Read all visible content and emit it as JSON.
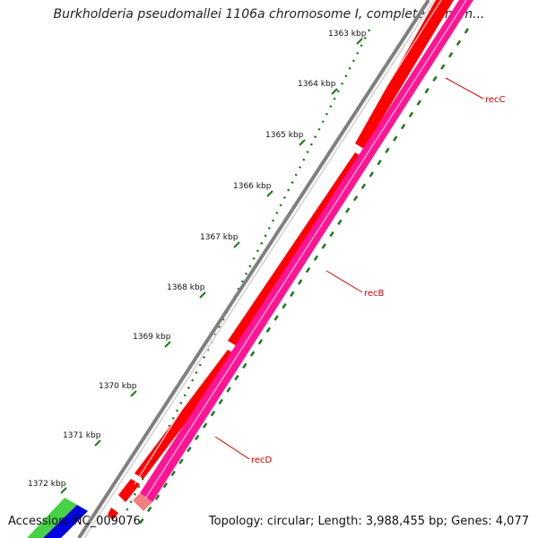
{
  "title": "Burkholderia pseudomallei 1106a chromosome I, complete genom...",
  "footer": {
    "accession": "Accession: NC_009076",
    "summary": "Topology: circular; Length: 3,988,455 bp; Genes: 4,077"
  },
  "ticks": [
    {
      "label": "1363 kbp"
    },
    {
      "label": "1364 kbp"
    },
    {
      "label": "1365 kbp"
    },
    {
      "label": "1366 kbp"
    },
    {
      "label": "1367 kbp"
    },
    {
      "label": "1368 kbp"
    },
    {
      "label": "1369 kbp"
    },
    {
      "label": "1370 kbp"
    },
    {
      "label": "1371 kbp"
    },
    {
      "label": "1372 kbp"
    }
  ],
  "genes": [
    {
      "name": "recC"
    },
    {
      "name": "recB"
    },
    {
      "name": "recD"
    }
  ],
  "colors": {
    "backbone": "#808080",
    "forward_cds": "#ff0000",
    "reverse_track": "#ff1493",
    "ruler": "#1a7a1a",
    "label_line": "#dd0000",
    "green_feature": "#33cc33",
    "blue_feature": "#0000dd"
  }
}
